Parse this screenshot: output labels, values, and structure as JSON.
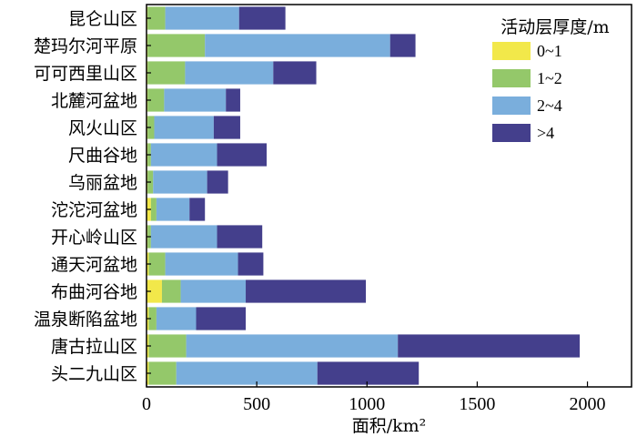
{
  "chart_data": {
    "type": "bar",
    "orientation": "horizontal",
    "stacked": true,
    "title": "",
    "xlabel": "面积/km²",
    "ylabel": "",
    "xlim": [
      0,
      2200
    ],
    "xticks": [
      0,
      500,
      1000,
      1500,
      2000
    ],
    "categories": [
      "昆仑山区",
      "楚玛尔河平原",
      "可可西里山区",
      "北麓河盆地",
      "风火山区",
      "尺曲谷地",
      "乌丽盆地",
      "沱沱河盆地",
      "开心岭山区",
      "通天河盆地",
      "布曲河谷地",
      "温泉断陷盆地",
      "唐古拉山区",
      "头二九山区"
    ],
    "legend_title": "活动层厚度/m",
    "legend_position": "top-right",
    "grid": false,
    "series": [
      {
        "name": "0~1",
        "color": "#f2e84a",
        "values": [
          5,
          5,
          5,
          5,
          5,
          5,
          5,
          20,
          5,
          10,
          70,
          10,
          10,
          10
        ]
      },
      {
        "name": "1~2",
        "color": "#94c86a",
        "values": [
          80,
          260,
          170,
          75,
          30,
          15,
          25,
          25,
          15,
          75,
          85,
          35,
          170,
          125
        ]
      },
      {
        "name": "2~4",
        "color": "#7aaedc",
        "values": [
          335,
          840,
          400,
          280,
          270,
          300,
          245,
          150,
          300,
          330,
          295,
          180,
          960,
          640
        ]
      },
      {
        "name": ">4",
        "color": "#443f8c",
        "values": [
          210,
          115,
          195,
          65,
          120,
          225,
          95,
          70,
          205,
          115,
          545,
          225,
          825,
          460
        ]
      }
    ]
  }
}
